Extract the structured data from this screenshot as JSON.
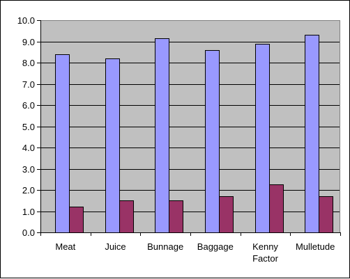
{
  "chart_data": {
    "type": "bar",
    "title": "",
    "xlabel": "",
    "ylabel": "",
    "categories": [
      [
        "Meat"
      ],
      [
        "Juice"
      ],
      [
        "Bunnage"
      ],
      [
        "Baggage"
      ],
      [
        "Kenny",
        "Factor"
      ],
      [
        "Mulletude"
      ]
    ],
    "series": [
      {
        "values": [
          8.4,
          8.2,
          9.15,
          8.6,
          8.9,
          9.3
        ],
        "color": "#9999ff"
      },
      {
        "values": [
          1.2,
          1.5,
          1.5,
          1.7,
          2.25,
          1.7
        ],
        "color": "#993366"
      }
    ],
    "ylim": [
      0,
      10
    ],
    "yticks": [
      "0.0",
      "1.0",
      "2.0",
      "3.0",
      "4.0",
      "5.0",
      "6.0",
      "7.0",
      "8.0",
      "9.0",
      "10.0"
    ],
    "grid": true,
    "legend": "none",
    "plot_background": "#c0c0c0"
  }
}
